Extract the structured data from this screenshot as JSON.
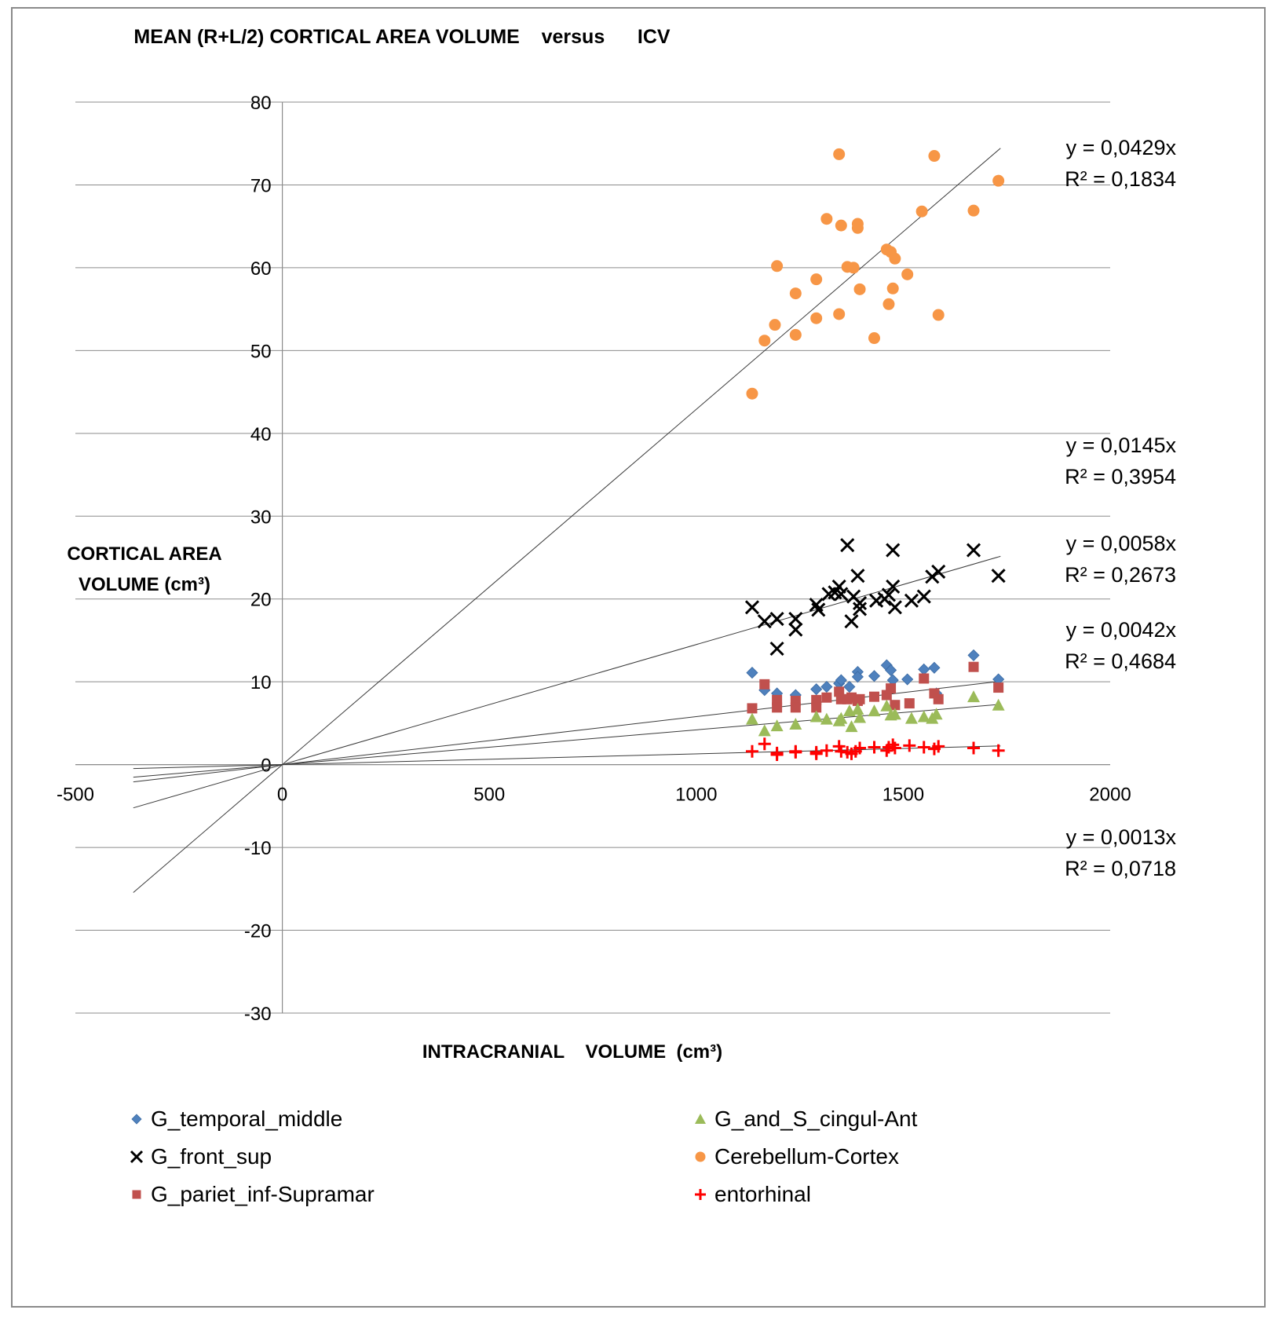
{
  "chart_data": {
    "type": "scatter",
    "title": "MEAN (R+L/2) CORTICAL AREA VOLUME    versus      ICV",
    "xlabel": "INTRACRANIAL    VOLUME  (cm³)",
    "ylabel_lines": [
      "CORTICAL AREA",
      "VOLUME (cm³)"
    ],
    "xlim": [
      -500,
      2000
    ],
    "ylim": [
      -30,
      80
    ],
    "x_ticks": [
      -500,
      0,
      500,
      1000,
      1500,
      2000
    ],
    "y_ticks": [
      80,
      70,
      60,
      50,
      40,
      30,
      20,
      10,
      0,
      -10,
      -20,
      -30
    ],
    "grid": "horizontal",
    "legend_position": "bottom",
    "trendline_x_range": [
      -360,
      1735
    ],
    "series": [
      {
        "name": "G_temporal_middle",
        "marker": "diamond",
        "color": "#4F81BD",
        "slope": 0.0058,
        "equation": "y = 0,0058x",
        "r2": "R² = 0,2673",
        "x": [
          1135,
          1165,
          1195,
          1240,
          1290,
          1315,
          1345,
          1350,
          1370,
          1390,
          1390,
          1430,
          1460,
          1470,
          1475,
          1510,
          1550,
          1575,
          1580,
          1670,
          1730
        ],
        "y": [
          11.1,
          9.0,
          8.6,
          8.4,
          9.1,
          9.4,
          9.8,
          10.2,
          9.4,
          11.2,
          10.6,
          10.7,
          12.0,
          11.4,
          10.2,
          10.3,
          11.5,
          11.7,
          8.6,
          13.2,
          10.3
        ]
      },
      {
        "name": "G_front_sup",
        "marker": "cross",
        "color": "#000000",
        "slope": 0.0145,
        "equation": "y = 0,0145x",
        "r2": "R² = 0,3954",
        "x": [
          1135,
          1165,
          1195,
          1195,
          1240,
          1240,
          1290,
          1295,
          1320,
          1335,
          1345,
          1350,
          1365,
          1375,
          1380,
          1390,
          1395,
          1395,
          1435,
          1455,
          1465,
          1475,
          1475,
          1480,
          1520,
          1550,
          1570,
          1585,
          1670,
          1730
        ],
        "y": [
          19.0,
          17.3,
          17.6,
          14.0,
          17.6,
          16.3,
          19.3,
          18.7,
          20.6,
          20.8,
          21.5,
          20.6,
          26.5,
          17.3,
          20.3,
          22.8,
          19.5,
          18.8,
          19.8,
          20.0,
          20.5,
          21.5,
          25.9,
          19.0,
          19.8,
          20.3,
          22.7,
          23.3,
          25.9,
          22.8
        ]
      },
      {
        "name": "G_pariet_inf-Supramar",
        "marker": "square",
        "color": "#C0504D",
        "slope": 0.0042,
        "equation": "y = 0,0042x",
        "r2": "R² = 0,4684",
        "x": [
          1135,
          1165,
          1195,
          1195,
          1240,
          1240,
          1290,
          1290,
          1315,
          1345,
          1350,
          1365,
          1375,
          1390,
          1395,
          1430,
          1460,
          1470,
          1480,
          1515,
          1550,
          1575,
          1585,
          1670,
          1730
        ],
        "y": [
          6.8,
          9.7,
          7.8,
          6.9,
          7.7,
          6.9,
          7.8,
          6.9,
          8.1,
          8.8,
          7.9,
          7.9,
          8.1,
          7.7,
          7.9,
          8.2,
          8.4,
          9.2,
          7.2,
          7.4,
          10.4,
          8.6,
          7.9,
          11.8,
          9.3
        ]
      },
      {
        "name": "G_and_S_cingul-Ant",
        "marker": "triangle",
        "color": "#9BBB59",
        "slope": 0.0042,
        "equation": "",
        "r2": "",
        "x": [
          1135,
          1165,
          1195,
          1240,
          1290,
          1315,
          1345,
          1350,
          1370,
          1375,
          1390,
          1395,
          1430,
          1460,
          1470,
          1480,
          1520,
          1550,
          1570,
          1580,
          1670,
          1730
        ],
        "y": [
          5.5,
          4.1,
          4.7,
          4.9,
          5.8,
          5.5,
          5.3,
          5.6,
          6.5,
          4.6,
          6.7,
          5.7,
          6.5,
          7.1,
          6.0,
          6.1,
          5.6,
          5.8,
          5.6,
          6.1,
          8.2,
          7.2
        ]
      },
      {
        "name": "Cerebellum-Cortex",
        "marker": "circle",
        "color": "#F79646",
        "slope": 0.0429,
        "equation": "y = 0,0429x",
        "r2": "R² = 0,1834",
        "x": [
          1135,
          1165,
          1190,
          1195,
          1240,
          1240,
          1290,
          1290,
          1315,
          1345,
          1345,
          1350,
          1365,
          1380,
          1390,
          1390,
          1395,
          1430,
          1460,
          1465,
          1470,
          1475,
          1480,
          1510,
          1545,
          1575,
          1585,
          1670,
          1730
        ],
        "y": [
          44.8,
          51.2,
          53.1,
          60.2,
          56.9,
          51.9,
          58.6,
          53.9,
          65.9,
          54.4,
          73.7,
          65.1,
          60.1,
          60.0,
          65.3,
          64.8,
          57.4,
          51.5,
          62.2,
          55.6,
          61.9,
          57.5,
          61.1,
          59.2,
          66.8,
          73.5,
          54.3,
          66.9,
          70.5
        ]
      },
      {
        "name": "entorhinal",
        "marker": "plus",
        "color": "#FF0000",
        "slope": 0.0013,
        "equation": "y = 0,0013x",
        "r2": "R² = 0,0718",
        "x": [
          1135,
          1165,
          1195,
          1195,
          1240,
          1240,
          1290,
          1290,
          1315,
          1345,
          1350,
          1365,
          1375,
          1385,
          1395,
          1430,
          1460,
          1465,
          1475,
          1480,
          1515,
          1550,
          1575,
          1585,
          1670,
          1730
        ],
        "y": [
          1.6,
          2.5,
          1.2,
          1.4,
          1.5,
          1.6,
          1.3,
          1.5,
          1.7,
          2.2,
          1.6,
          1.5,
          1.3,
          1.6,
          2.0,
          2.1,
          1.7,
          2.1,
          2.4,
          2.0,
          2.3,
          2.1,
          1.9,
          2.2,
          2.0,
          1.7
        ]
      }
    ]
  }
}
